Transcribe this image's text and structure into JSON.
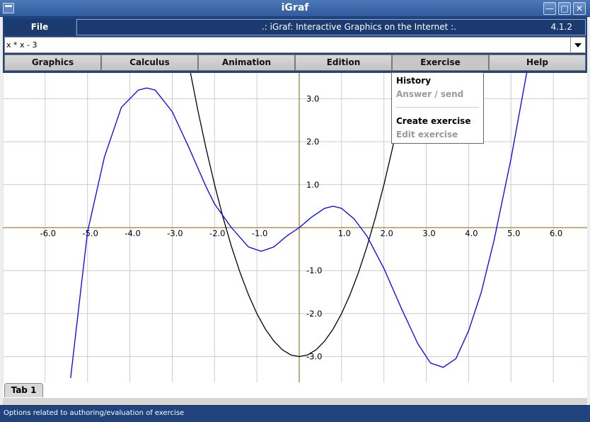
{
  "window": {
    "title": "iGraf",
    "icons": {
      "app": "window-icon",
      "minimize": "minimize-icon",
      "maximize": "maximize-icon",
      "close": "close-icon"
    }
  },
  "header": {
    "file_label": "File",
    "banner_title": ".: iGraf: Interactive Graphics on the Internet :.",
    "version": "4.1.2"
  },
  "expression": {
    "value": "x * x - 3"
  },
  "menus": [
    "Graphics",
    "Calculus",
    "Animation",
    "Edition",
    "Exercise",
    "Help"
  ],
  "exercise_menu": {
    "items": [
      {
        "label": "History",
        "enabled": true
      },
      {
        "label": "Answer  /  send",
        "enabled": false
      },
      {
        "label": "Create exercise",
        "enabled": true
      },
      {
        "label": "Edit exercise",
        "enabled": false
      }
    ]
  },
  "tabs": [
    "Tab 1"
  ],
  "status": "Options related to authoring/evaluation of exercise",
  "colors": {
    "title_bar": "#3a66a8",
    "frame": "#21437d",
    "grid": "#cccccc",
    "axis": "#a89254",
    "curve_parabola": "#000000",
    "curve_wave": "#0000ff"
  },
  "chart_data": {
    "type": "line",
    "title": "",
    "xlabel": "",
    "ylabel": "",
    "xlim": [
      -7.0,
      6.8
    ],
    "ylim": [
      -3.6,
      3.6
    ],
    "grid": true,
    "x_ticks": [
      "-6.0",
      "-5.0",
      "-4.0",
      "-3.0",
      "-2.0",
      "-1.0",
      "1.0",
      "2.0",
      "3.0",
      "4.0",
      "5.0",
      "6.0"
    ],
    "y_ticks": [
      "3.0",
      "2.0",
      "1.0",
      "-1.0",
      "-2.0",
      "-3.0"
    ],
    "series": [
      {
        "color": "#000000",
        "x": [
          -2.6,
          -2.4,
          -2.2,
          -2.0,
          -1.8,
          -1.6,
          -1.4,
          -1.2,
          -1.0,
          -0.8,
          -0.6,
          -0.4,
          -0.2,
          0.0,
          0.2,
          0.4,
          0.6,
          0.8,
          1.0,
          1.2,
          1.4,
          1.6,
          1.8,
          2.0,
          2.2,
          2.4,
          2.6
        ],
        "y": [
          3.76,
          2.76,
          1.84,
          1.0,
          0.24,
          -0.44,
          -1.04,
          -1.56,
          -2.0,
          -2.36,
          -2.64,
          -2.84,
          -2.96,
          -3.0,
          -2.96,
          -2.84,
          -2.64,
          -2.36,
          -2.0,
          -1.56,
          -1.04,
          -0.44,
          0.24,
          1.0,
          1.84,
          2.76,
          3.76
        ]
      },
      {
        "color": "#0000ff",
        "x": [
          -5.4,
          -5.0,
          -4.6,
          -4.2,
          -3.8,
          -3.6,
          -3.4,
          -3.0,
          -2.6,
          -2.2,
          -2.0,
          -1.6,
          -1.2,
          -0.9,
          -0.6,
          -0.3,
          0.0,
          0.3,
          0.6,
          0.8,
          1.0,
          1.3,
          1.6,
          2.0,
          2.4,
          2.8,
          3.1,
          3.4,
          3.7,
          4.0,
          4.3,
          4.6,
          5.0,
          5.4
        ],
        "y": [
          -3.5,
          -0.1,
          1.65,
          2.8,
          3.2,
          3.25,
          3.2,
          2.7,
          1.85,
          0.95,
          0.55,
          0.0,
          -0.45,
          -0.55,
          -0.45,
          -0.2,
          0.0,
          0.25,
          0.45,
          0.5,
          0.45,
          0.2,
          -0.2,
          -0.95,
          -1.85,
          -2.7,
          -3.15,
          -3.25,
          -3.05,
          -2.4,
          -1.5,
          -0.3,
          1.6,
          3.75
        ]
      }
    ]
  }
}
